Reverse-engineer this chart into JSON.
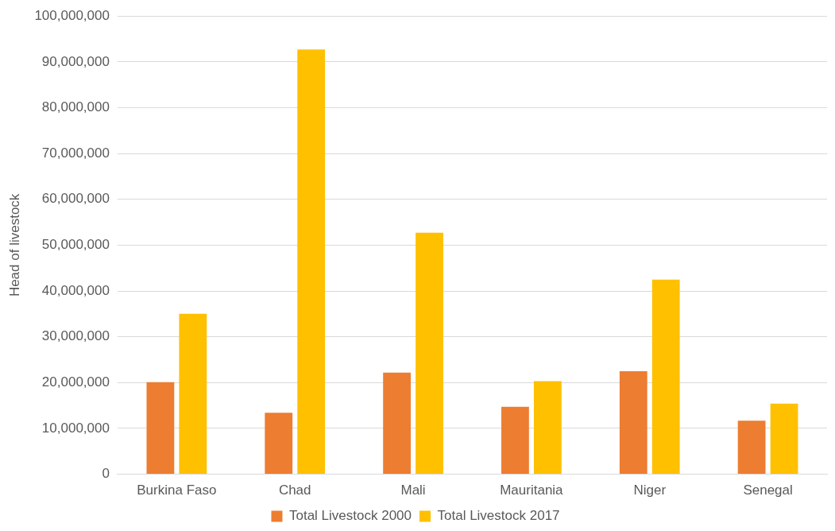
{
  "chart_data": {
    "type": "bar",
    "ylabel": "Head of livestock",
    "categories": [
      "Burkina Faso",
      "Chad",
      "Mali",
      "Mauritania",
      "Niger",
      "Senegal"
    ],
    "series": [
      {
        "name": "Total Livestock 2000",
        "color": "#ed7d31",
        "values": [
          20100000,
          13400000,
          22200000,
          14700000,
          22500000,
          11700000
        ]
      },
      {
        "name": "Total Livestock 2017",
        "color": "#ffc000",
        "values": [
          35000000,
          92700000,
          52700000,
          20300000,
          42500000,
          15400000
        ]
      }
    ],
    "ylim": [
      0,
      100000000
    ],
    "yticks": [
      {
        "value": 0,
        "label": "0"
      },
      {
        "value": 10000000,
        "label": "10,000,000"
      },
      {
        "value": 20000000,
        "label": "20,000,000"
      },
      {
        "value": 30000000,
        "label": "30,000,000"
      },
      {
        "value": 40000000,
        "label": "40,000,000"
      },
      {
        "value": 50000000,
        "label": "50,000,000"
      },
      {
        "value": 60000000,
        "label": "60,000,000"
      },
      {
        "value": 70000000,
        "label": "70,000,000"
      },
      {
        "value": 80000000,
        "label": "80,000,000"
      },
      {
        "value": 90000000,
        "label": "90,000,000"
      },
      {
        "value": 100000000,
        "label": "100,000,000"
      }
    ],
    "grid": "y",
    "legend": "bottom"
  }
}
